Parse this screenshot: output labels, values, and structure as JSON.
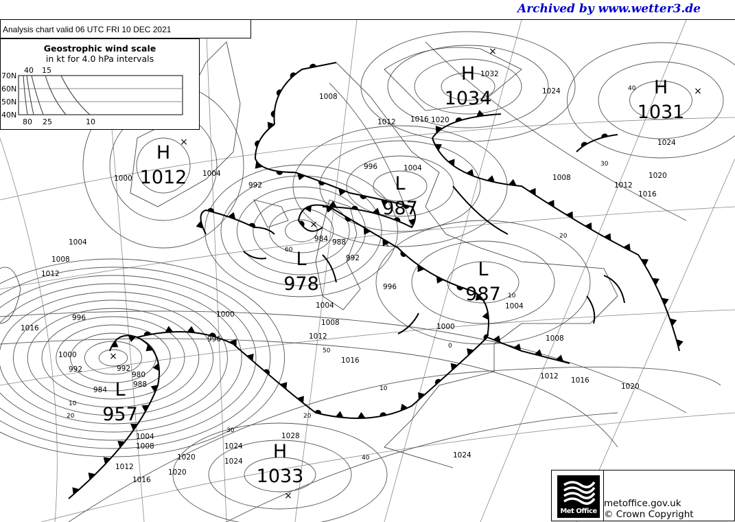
{
  "archive_credit": "Archived by www.wetter3.de",
  "header": {
    "valid_text": "Analysis chart  valid 06 UTC FRI 10  DEC 2021"
  },
  "wind_scale": {
    "title": "Geostrophic wind scale",
    "subtitle": "in kt for 4.0 hPa intervals",
    "lat_labels": [
      "70N",
      "60N",
      "50N",
      "40N"
    ],
    "top_labels": [
      "40",
      "15"
    ],
    "bottom_labels": [
      "80",
      "25",
      "10"
    ]
  },
  "pressure_centers": [
    {
      "type": "H",
      "value": "1012"
    },
    {
      "type": "H",
      "value": "1034"
    },
    {
      "type": "H",
      "value": "1031"
    },
    {
      "type": "L",
      "value": "987"
    },
    {
      "type": "L",
      "value": "978"
    },
    {
      "type": "L",
      "value": "987"
    },
    {
      "type": "L",
      "value": "957"
    },
    {
      "type": "H",
      "value": "1033"
    }
  ],
  "isobar_labels": [
    "1008",
    "1012",
    "1016",
    "1020",
    "1024",
    "1032",
    "1004",
    "1000",
    "992",
    "1004",
    "1008",
    "1012",
    "1016",
    "996",
    "992",
    "1000",
    "992",
    "988",
    "984",
    "980",
    "984",
    "988",
    "992",
    "996",
    "1000",
    "1004",
    "1008",
    "1012",
    "1016",
    "1020",
    "1024",
    "1028",
    "996",
    "1004",
    "1008",
    "1012",
    "1016",
    "1020",
    "1024",
    "1000",
    "1004",
    "1008",
    "1012",
    "1016",
    "1020",
    "1024",
    "1008",
    "1012",
    "1016",
    "1020",
    "1024",
    "1004",
    "996"
  ],
  "latitude_labels": [
    "40",
    "30",
    "20",
    "10",
    "0",
    "50",
    "60",
    "20",
    "10",
    "40",
    "30",
    "20",
    "10"
  ],
  "footer": {
    "logo_text": "Met Office",
    "site": "metoffice.gov.uk",
    "copyright": "© Crown Copyright"
  },
  "colors": {
    "archive_credit": "#0000cc",
    "lines": "#000000",
    "isobars": "#555555",
    "grid": "#777777"
  }
}
